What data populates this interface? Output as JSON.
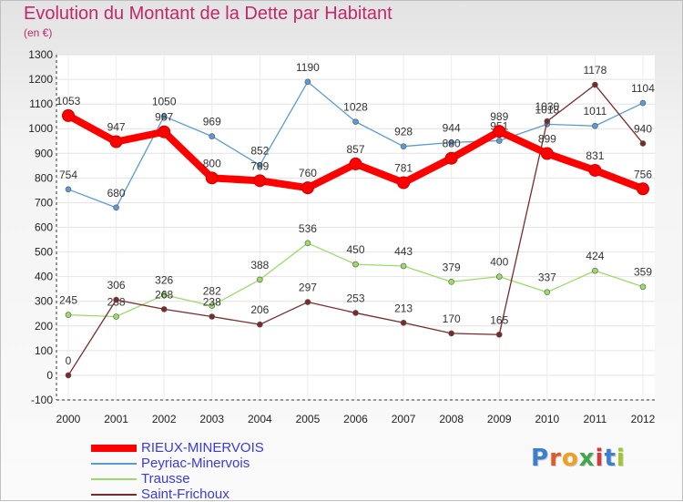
{
  "title": "Evolution du Montant de la Dette par Habitant",
  "subtitle": "(en €)",
  "logo_text": "Proxiti",
  "chart_data": {
    "type": "line",
    "title": "Evolution du Montant de la Dette par Habitant",
    "subtitle": "(en €)",
    "xlabel": "",
    "ylabel": "",
    "x": [
      "2000",
      "2001",
      "2002",
      "2003",
      "2004",
      "2005",
      "2006",
      "2007",
      "2008",
      "2009",
      "2010",
      "2011",
      "2012"
    ],
    "ylim": [
      -100,
      1300
    ],
    "yticks": [
      -100,
      0,
      100,
      200,
      300,
      400,
      500,
      600,
      700,
      800,
      900,
      1000,
      1100,
      1200,
      1300
    ],
    "grid": true,
    "legend_position": "bottom-left",
    "series": [
      {
        "name": "RIEUX-MINERVOIS",
        "color": "#ff0000",
        "emphasis": true,
        "values": [
          1053,
          947,
          987,
          800,
          789,
          760,
          857,
          781,
          880,
          989,
          899,
          831,
          756
        ]
      },
      {
        "name": "Peyriac-Minervois",
        "color": "#5b9bd5",
        "values": [
          754,
          680,
          1050,
          969,
          852,
          1190,
          1028,
          928,
          944,
          951,
          1018,
          1011,
          1104
        ]
      },
      {
        "name": "Trausse",
        "color": "#99dd66",
        "values": [
          245,
          238,
          326,
          282,
          388,
          536,
          450,
          443,
          379,
          400,
          337,
          424,
          359
        ]
      },
      {
        "name": "Saint-Frichoux",
        "color": "#7a2a2a",
        "values": [
          0,
          306,
          268,
          238,
          206,
          297,
          253,
          213,
          170,
          165,
          1030,
          1178,
          940
        ]
      }
    ]
  }
}
